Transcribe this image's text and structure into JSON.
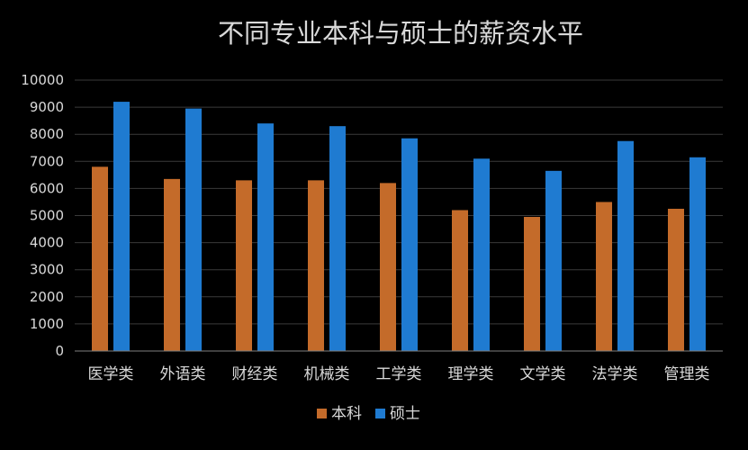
{
  "chart_data": {
    "type": "bar",
    "title": "不同专业本科与硕士的薪资水平",
    "categories": [
      "医学类",
      "外语类",
      "财经类",
      "机械类",
      "工学类",
      "理学类",
      "文学类",
      "法学类",
      "管理类"
    ],
    "series": [
      {
        "name": "本科",
        "color": "#c46b2a",
        "values": [
          6800,
          6350,
          6300,
          6300,
          6200,
          5200,
          4950,
          5500,
          5250
        ]
      },
      {
        "name": "硕士",
        "color": "#1f7bd1",
        "values": [
          9200,
          8950,
          8400,
          8300,
          7850,
          7100,
          6650,
          7750,
          7150
        ]
      }
    ],
    "ylim": [
      0,
      10000
    ],
    "yticks": [
      0,
      1000,
      2000,
      3000,
      4000,
      5000,
      6000,
      7000,
      8000,
      9000,
      10000
    ],
    "xlabel": "",
    "ylabel": "",
    "grid": true,
    "legend_position": "bottom-center",
    "background": "#000000",
    "text_color": "#d9d9d9"
  }
}
